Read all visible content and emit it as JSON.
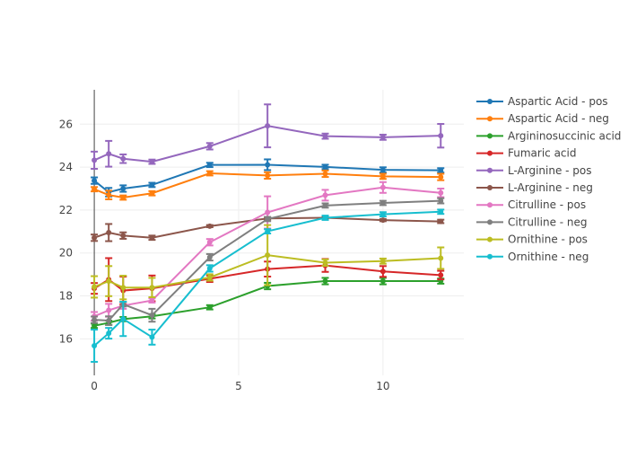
{
  "chart_data": {
    "type": "line",
    "title": "",
    "xlabel": "",
    "ylabel": "",
    "xlim": [
      -0.5,
      12.8
    ],
    "ylim": [
      14.3,
      27.6
    ],
    "grid": true,
    "legend_position": "right",
    "x_ticks": [
      0,
      5,
      10
    ],
    "y_ticks": [
      16,
      18,
      20,
      22,
      24,
      26
    ],
    "x": [
      0,
      0.5,
      1,
      2,
      4,
      6,
      8,
      10,
      12
    ],
    "series": [
      {
        "name": "Aspartic Acid - pos",
        "color": "#1f77b4",
        "values": [
          23.37,
          22.83,
          23.0,
          23.17,
          24.1,
          24.11,
          24.01,
          23.87,
          23.85
        ],
        "error": [
          0.15,
          0.2,
          0.15,
          0.1,
          0.1,
          0.25,
          0.1,
          0.12,
          0.1
        ]
      },
      {
        "name": "Aspartic Acid - neg",
        "color": "#ff7f0e",
        "values": [
          22.97,
          22.7,
          22.58,
          22.78,
          23.71,
          23.61,
          23.69,
          23.57,
          23.54
        ],
        "error": [
          0.1,
          0.2,
          0.1,
          0.1,
          0.1,
          0.15,
          0.15,
          0.12,
          0.15
        ]
      },
      {
        "name": "Argininosuccinic acid",
        "color": "#2ca02c",
        "values": [
          16.61,
          16.75,
          16.92,
          17.05,
          17.47,
          18.46,
          18.69,
          18.69,
          18.69
        ],
        "error": [
          0.1,
          0.1,
          0.1,
          0.1,
          0.1,
          0.15,
          0.15,
          0.15,
          0.12
        ]
      },
      {
        "name": "Fumaric acid",
        "color": "#d62728",
        "values": [
          18.35,
          18.76,
          18.25,
          18.35,
          18.8,
          19.25,
          19.42,
          19.14,
          18.97
        ],
        "error": [
          0.25,
          1.0,
          0.65,
          0.6,
          0.15,
          0.35,
          0.3,
          0.25,
          0.2
        ]
      },
      {
        "name": "L-Arginine - pos",
        "color": "#9467bd",
        "values": [
          24.32,
          24.62,
          24.39,
          24.25,
          24.97,
          25.92,
          25.44,
          25.39,
          25.46
        ],
        "error": [
          0.4,
          0.6,
          0.2,
          0.1,
          0.15,
          1.0,
          0.12,
          0.12,
          0.55
        ]
      },
      {
        "name": "L-Arginine - neg",
        "color": "#8c564b",
        "values": [
          20.71,
          20.95,
          20.81,
          20.71,
          21.25,
          21.61,
          21.64,
          21.53,
          21.47
        ],
        "error": [
          0.15,
          0.4,
          0.15,
          0.1,
          0.05,
          0.05,
          0.05,
          0.05,
          0.08
        ]
      },
      {
        "name": "Citrulline - pos",
        "color": "#e377c2",
        "values": [
          17.05,
          17.33,
          17.55,
          17.79,
          20.5,
          21.89,
          22.69,
          23.05,
          22.8
        ],
        "error": [
          0.2,
          0.3,
          0.15,
          0.1,
          0.15,
          0.75,
          0.25,
          0.25,
          0.2
        ]
      },
      {
        "name": "Citrulline - neg",
        "color": "#7f7f7f",
        "values": [
          16.89,
          16.85,
          17.61,
          17.1,
          19.8,
          21.58,
          22.21,
          22.33,
          22.43
        ],
        "error": [
          0.15,
          0.2,
          0.1,
          0.3,
          0.15,
          0.1,
          0.1,
          0.1,
          0.12
        ]
      },
      {
        "name": "Ornithine - pos",
        "color": "#bcbd22",
        "values": [
          18.42,
          18.69,
          18.39,
          18.39,
          18.86,
          19.9,
          19.55,
          19.62,
          19.76
        ],
        "error": [
          0.5,
          0.7,
          0.55,
          0.45,
          0.15,
          1.4,
          0.15,
          0.12,
          0.5
        ]
      },
      {
        "name": "Ornithine - neg",
        "color": "#17becf",
        "values": [
          15.68,
          16.26,
          16.93,
          16.08,
          19.28,
          21.01,
          21.64,
          21.8,
          21.92
        ],
        "error": [
          0.75,
          0.25,
          0.8,
          0.35,
          0.15,
          0.1,
          0.1,
          0.1,
          0.1
        ]
      }
    ]
  }
}
